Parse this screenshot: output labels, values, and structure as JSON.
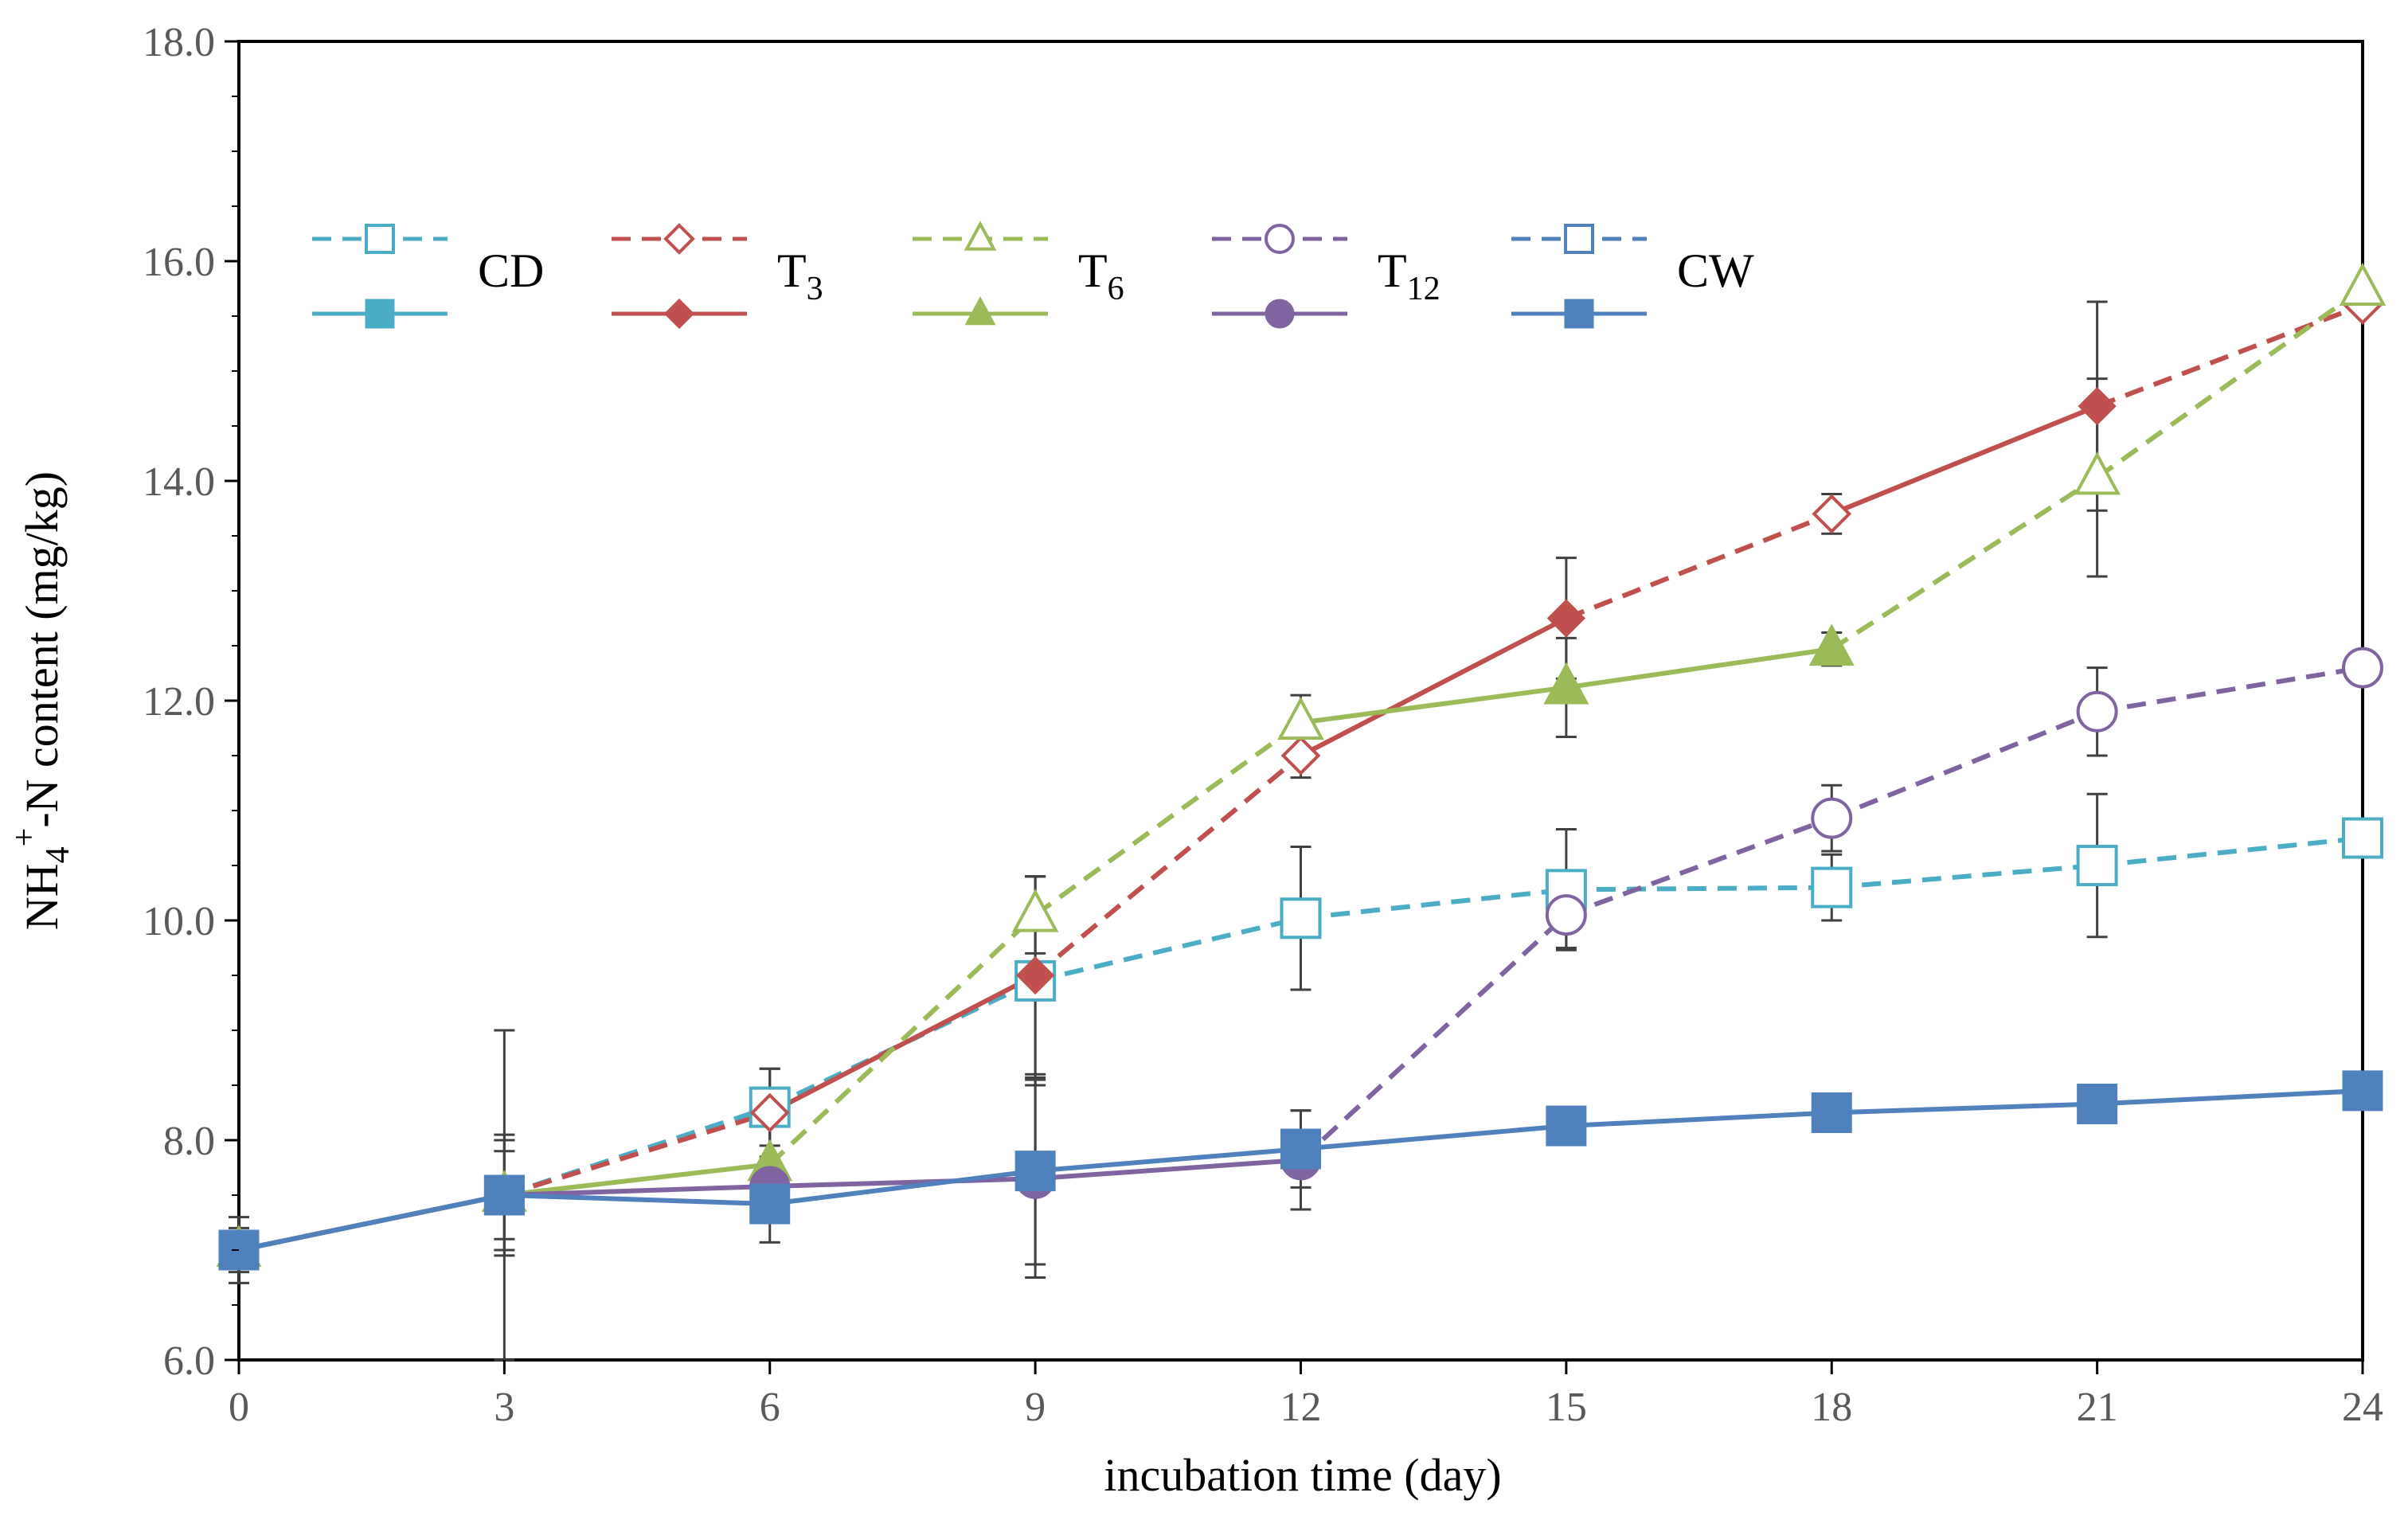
{
  "chart_data": {
    "type": "line",
    "xlabel": "incubation time (day)",
    "ylabel": {
      "base": "NH",
      "sub": "4",
      "sup": "+",
      "rest": "-N  content  (mg/kg)"
    },
    "xlim": [
      0,
      24
    ],
    "ylim": [
      6.0,
      18.0
    ],
    "xticks": [
      0,
      3,
      6,
      9,
      12,
      15,
      18,
      21,
      24
    ],
    "xtick_labels": [
      "0",
      "3",
      "6",
      "9",
      "12",
      "15",
      "18",
      "21",
      "24"
    ],
    "yticks": [
      6,
      8,
      10,
      12,
      14,
      16,
      18
    ],
    "ytick_labels": [
      "6.0",
      "8.0",
      "10.0",
      "12.0",
      "14.0",
      "16.0",
      "18.0"
    ],
    "grid": false,
    "legend_position": "top",
    "legend": [
      {
        "label": "CD",
        "sub": ""
      },
      {
        "label": "T",
        "sub": "3"
      },
      {
        "label": "T",
        "sub": "6"
      },
      {
        "label": "T",
        "sub": "12"
      },
      {
        "label": "CW",
        "sub": ""
      }
    ],
    "series": [
      {
        "name": "CD",
        "color": "#4bacc6",
        "marker": "square",
        "x": [
          0,
          3,
          6,
          9,
          12,
          15,
          18,
          21,
          24
        ],
        "y": [
          7.0,
          7.5,
          8.3,
          9.45,
          10.02,
          10.28,
          10.3,
          10.5,
          10.75
        ],
        "filled": [
          true,
          true,
          false,
          false,
          false,
          false,
          false,
          false,
          false
        ],
        "dashed": [
          true,
          true,
          true,
          true,
          true,
          true,
          true,
          true
        ],
        "err": [
          0.2,
          1.5,
          0.35,
          0.95,
          0.65,
          0.55,
          0.3,
          0.65,
          0
        ]
      },
      {
        "name": "T3",
        "color": "#c0504d",
        "marker": "diamond",
        "x": [
          0,
          3,
          6,
          9,
          12,
          15,
          18,
          21,
          24
        ],
        "y": [
          7.0,
          7.5,
          8.25,
          9.5,
          11.5,
          12.75,
          13.7,
          14.68,
          15.6
        ],
        "filled": [
          true,
          true,
          false,
          true,
          false,
          true,
          false,
          true,
          false
        ],
        "dashed": [
          false,
          true,
          false,
          true,
          false,
          true,
          false,
          true
        ],
        "err": [
          0.15,
          0.5,
          0.4,
          0.9,
          0.2,
          0.55,
          0.18,
          0.95,
          0
        ]
      },
      {
        "name": "T6",
        "color": "#9bbb59",
        "marker": "triangle",
        "x": [
          0,
          3,
          6,
          9,
          12,
          15,
          18,
          21,
          24
        ],
        "y": [
          7.0,
          7.5,
          7.78,
          10.05,
          11.8,
          12.12,
          12.47,
          14.03,
          15.75
        ],
        "filled": [
          true,
          true,
          true,
          false,
          false,
          true,
          true,
          false,
          false
        ],
        "dashed": [
          false,
          false,
          true,
          true,
          false,
          false,
          true,
          true
        ],
        "err": [
          0.15,
          0.5,
          0.5,
          0.35,
          0.25,
          0.45,
          0.15,
          0.9,
          0
        ]
      },
      {
        "name": "T12",
        "color": "#8064a2",
        "marker": "circle",
        "x": [
          0,
          3,
          6,
          9,
          12,
          15,
          18,
          21,
          24
        ],
        "y": [
          7.0,
          7.5,
          7.58,
          7.65,
          7.82,
          10.05,
          10.93,
          11.9,
          12.3
        ],
        "filled": [
          true,
          true,
          true,
          true,
          true,
          false,
          false,
          false,
          false
        ],
        "dashed": [
          false,
          false,
          false,
          false,
          true,
          true,
          true,
          true
        ],
        "err": [
          0.15,
          0.4,
          0.25,
          0.9,
          0.45,
          0.3,
          0.3,
          0.4,
          0
        ]
      },
      {
        "name": "CW",
        "color": "#4f81bd",
        "marker": "square",
        "x": [
          0,
          3,
          6,
          9,
          12,
          15,
          18,
          21,
          24
        ],
        "y": [
          7.0,
          7.5,
          7.42,
          7.72,
          7.92,
          8.13,
          8.25,
          8.33,
          8.45
        ],
        "filled": [
          true,
          true,
          true,
          true,
          true,
          true,
          true,
          true,
          true
        ],
        "dashed": [
          false,
          false,
          false,
          false,
          false,
          false,
          false,
          false
        ],
        "err": [
          0.3,
          0.55,
          0.35,
          0.85,
          0.35,
          0,
          0,
          0,
          0
        ]
      }
    ]
  }
}
